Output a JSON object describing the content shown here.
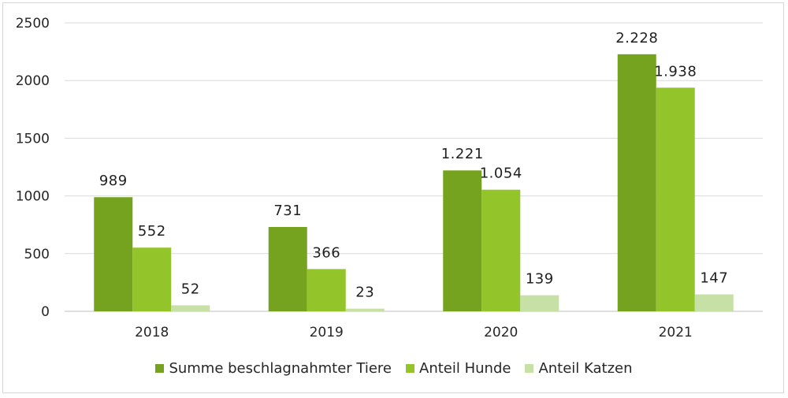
{
  "chart_data": {
    "type": "bar",
    "categories": [
      "2018",
      "2019",
      "2020",
      "2021"
    ],
    "series": [
      {
        "name": "Summe beschlagnahmter Tiere",
        "values": [
          989,
          731,
          1221,
          2228
        ],
        "labels": [
          "989",
          "731",
          "1.221",
          "2.228"
        ],
        "color": "#76a31f"
      },
      {
        "name": "Anteil Hunde",
        "values": [
          552,
          366,
          1054,
          1938
        ],
        "labels": [
          "552",
          "366",
          "1.054",
          "1.938"
        ],
        "color": "#93c42a"
      },
      {
        "name": "Anteil Katzen",
        "values": [
          52,
          23,
          139,
          147
        ],
        "labels": [
          "52",
          "23",
          "139",
          "147"
        ],
        "color": "#c6e0a6"
      }
    ],
    "yticks": [
      "0",
      "500",
      "1000",
      "1500",
      "2000",
      "2500"
    ],
    "ylim": [
      0,
      2500
    ],
    "grid": true,
    "legend_position": "bottom"
  }
}
